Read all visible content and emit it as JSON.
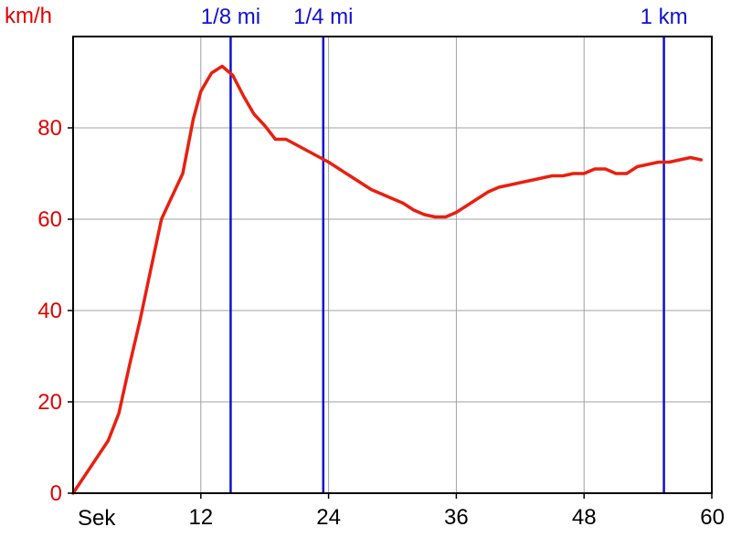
{
  "chart_data": {
    "type": "line",
    "y_unit_label": "km/h",
    "x_unit_label": "Sek",
    "xlim": [
      0,
      60
    ],
    "ylim": [
      0,
      100
    ],
    "x_ticks": [
      12,
      24,
      36,
      48,
      60
    ],
    "x_tick_labels": [
      "12",
      "24",
      "36",
      "48",
      "60"
    ],
    "y_ticks": [
      0,
      20,
      40,
      60,
      80
    ],
    "y_tick_labels": [
      "0",
      "20",
      "40",
      "60",
      "80"
    ],
    "grid": true,
    "colors": {
      "line": "#e82010",
      "marker": "#1010d0",
      "grid": "#a0a0a0",
      "axis": "#000000"
    },
    "markers": [
      {
        "label": "1/8 mi",
        "x": 14.8
      },
      {
        "label": "1/4 mi",
        "x": 23.5
      },
      {
        "label": "1 km",
        "x": 55.5
      }
    ],
    "series": [
      {
        "x": [
          0,
          3.3,
          4.3,
          5.3,
          6.3,
          7.3,
          8.3,
          9.3,
          10.3,
          11.3,
          12.0,
          13.0,
          14.0,
          15.0,
          16.0,
          17.0,
          18.0,
          19.0,
          20.0,
          22.0,
          24.0,
          25.0,
          26.0,
          27.0,
          28.0,
          29.0,
          30.0,
          31.0,
          32.0,
          33.0,
          34.0,
          35.0,
          36.0,
          37.0,
          38.0,
          39.0,
          40.0,
          41.0,
          42.0,
          43.0,
          44.0,
          45.0,
          46.0,
          47.0,
          48.0,
          49.0,
          50.0,
          51.0,
          52.0,
          53.0,
          54.0,
          55.0,
          56.0,
          57.0,
          58.0,
          59.0
        ],
        "y": [
          0,
          11.5,
          17.5,
          28,
          38,
          49,
          60,
          65,
          70,
          82,
          88,
          92,
          93.5,
          91.5,
          87,
          83,
          80.5,
          77.5,
          77.5,
          75,
          72.5,
          71,
          69.5,
          68,
          66.5,
          65.5,
          64.5,
          63.5,
          62,
          61,
          60.5,
          60.5,
          61.5,
          63,
          64.5,
          66,
          67,
          67.5,
          68,
          68.5,
          69,
          69.5,
          69.5,
          70,
          70,
          71,
          71,
          70,
          70,
          71.5,
          72,
          72.5,
          72.5,
          73,
          73.5,
          73
        ]
      }
    ]
  }
}
